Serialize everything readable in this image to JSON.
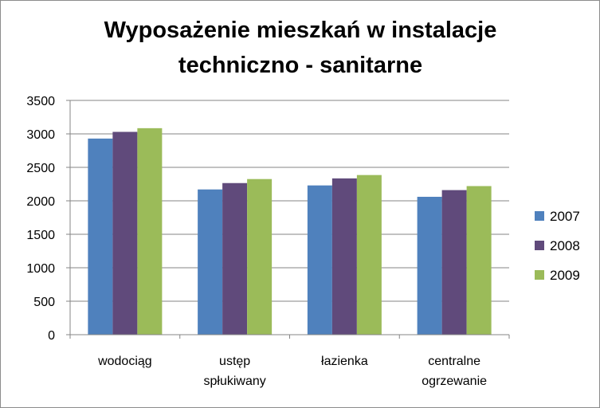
{
  "chart_data": {
    "type": "bar",
    "title_lines": [
      "Wyposażenie mieszkań w instalacje",
      "techniczno - sanitarne"
    ],
    "categories": [
      [
        "wodociąg"
      ],
      [
        "ustęp",
        "spłukiwany"
      ],
      [
        "łazienka"
      ],
      [
        "centralne",
        "ogrzewanie"
      ]
    ],
    "series": [
      {
        "name": "2007",
        "color": "#4f81bd",
        "values": [
          2930,
          2170,
          2230,
          2060
        ]
      },
      {
        "name": "2008",
        "color": "#604a7b",
        "values": [
          3030,
          2265,
          2335,
          2160
        ]
      },
      {
        "name": "2009",
        "color": "#9bbb59",
        "values": [
          3085,
          2325,
          2385,
          2220
        ]
      }
    ],
    "yticks": [
      "0",
      "500",
      "1000",
      "1500",
      "2000",
      "2500",
      "3000",
      "3500"
    ],
    "ylim": [
      0,
      3500
    ],
    "grid": true,
    "legend_position": "right"
  }
}
